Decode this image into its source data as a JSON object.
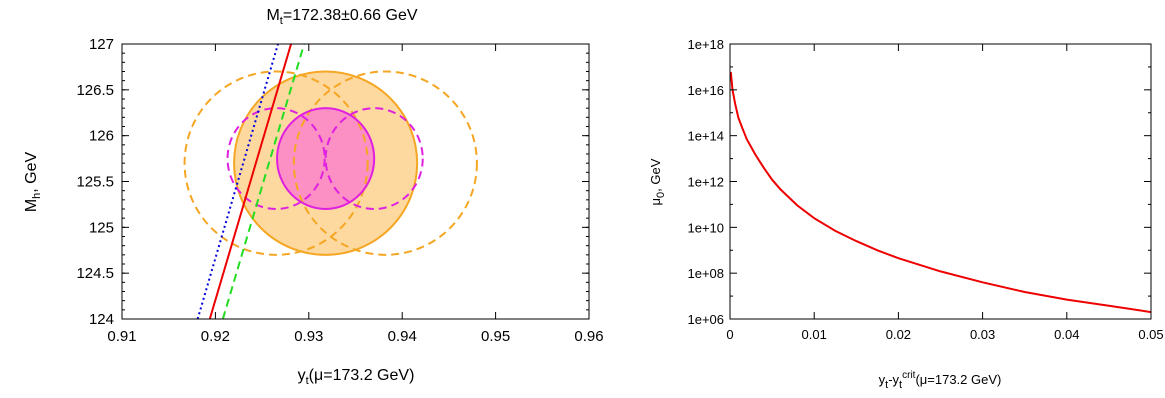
{
  "chart_data": [
    {
      "type": "line",
      "title": {
        "main": "M",
        "sub": "t",
        "rest": "=172.38±0.66 GeV"
      },
      "xlabel": {
        "main": "y",
        "sub": "t",
        "rest": "(μ=173.2 GeV)"
      },
      "ylabel": {
        "main": "M",
        "sub": "h",
        "rest": ", GeV"
      },
      "xlim": [
        0.91,
        0.96
      ],
      "ylim": [
        124,
        127
      ],
      "xticks": [
        "0.91",
        "0.92",
        "0.93",
        "0.94",
        "0.95",
        "0.96"
      ],
      "yticks": [
        "124",
        "124.5",
        "125",
        "125.5",
        "126",
        "126.5",
        "127"
      ],
      "grid": false,
      "ellipses": [
        {
          "color": "#f5a623",
          "fill": "#fdd9a0",
          "style": "solid",
          "cx": 0.9318,
          "cy": 125.7,
          "rx": 0.0098,
          "ry": 1.0
        },
        {
          "color": "#f5a623",
          "style": "dashed",
          "cx": 0.9265,
          "cy": 125.7,
          "rx": 0.0098,
          "ry": 1.0
        },
        {
          "color": "#f5a623",
          "style": "dashed",
          "cx": 0.9382,
          "cy": 125.7,
          "rx": 0.0098,
          "ry": 1.0
        },
        {
          "color": "#e020e0",
          "fill": "#fc8fc4",
          "style": "solid",
          "cx": 0.9318,
          "cy": 125.75,
          "rx": 0.0052,
          "ry": 0.55
        },
        {
          "color": "#e020e0",
          "style": "dashed",
          "cx": 0.9265,
          "cy": 125.75,
          "rx": 0.0052,
          "ry": 0.55
        },
        {
          "color": "#e020e0",
          "style": "dashed",
          "cx": 0.937,
          "cy": 125.75,
          "rx": 0.0052,
          "ry": 0.55
        }
      ],
      "lines": [
        {
          "color": "#0000dd",
          "style": "dotted",
          "x": [
            0.9181,
            0.9267
          ],
          "y": [
            124,
            127
          ]
        },
        {
          "color": "#ee0000",
          "style": "solid",
          "x": [
            0.9194,
            0.9281
          ],
          "y": [
            124,
            127
          ]
        },
        {
          "color": "#22dd22",
          "style": "dashed",
          "x": [
            0.9208,
            0.9295
          ],
          "y": [
            124,
            127
          ]
        }
      ]
    },
    {
      "type": "line",
      "title": "",
      "xlabel": {
        "main": "y",
        "sub": "t",
        "mid": "-y",
        "sub2": "t",
        "sup": "crit",
        "rest": "(μ=173.2 GeV)"
      },
      "ylabel": {
        "main": "μ",
        "sub": "0",
        "rest": ", GeV"
      },
      "xlim": [
        0,
        0.05
      ],
      "ylim": [
        1000000,
        1e+18
      ],
      "yscale": "log",
      "xticks": [
        "0",
        "0.01",
        "0.02",
        "0.03",
        "0.04",
        "0.05"
      ],
      "yticks": [
        "1e+06",
        "1e+08",
        "1e+10",
        "1e+12",
        "1e+14",
        "1e+16",
        "1e+18"
      ],
      "grid": false,
      "series": [
        {
          "color": "#ee0000",
          "x": [
            0.0001,
            0.0003,
            0.0006,
            0.001,
            0.0015,
            0.002,
            0.003,
            0.004,
            0.005,
            0.006,
            0.008,
            0.01,
            0.0125,
            0.015,
            0.0175,
            0.02,
            0.025,
            0.03,
            0.035,
            0.04,
            0.045,
            0.05
          ],
          "y": [
            6e+16,
            1e+16,
            2500000000000000.0,
            600000000000000.0,
            200000000000000.0,
            70000000000000.0,
            15000000000000.0,
            4000000000000.0,
            1200000000000.0,
            450000000000.0,
            90000000000.0,
            25000000000.0,
            7000000000.0,
            2500000000.0,
            1000000000.0,
            450000000.0,
            120000000.0,
            40000000.0,
            15000000.0,
            7000000.0,
            3800000.0,
            2000000.0
          ]
        }
      ]
    }
  ]
}
